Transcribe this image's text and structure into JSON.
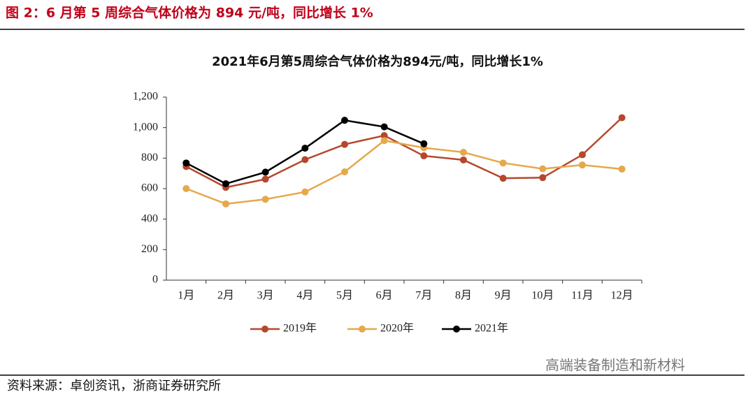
{
  "header_title": "图 2：6 月第 5 周综合气体价格为 894 元/吨，同比增长 1%",
  "source": "资料来源：卓创资讯，浙商证券研究所",
  "watermark": "高端装备制造和新材料",
  "chart_data": {
    "type": "line",
    "title": "2021年6月第5周综合气体价格为894元/吨，同比增长1%",
    "categories": [
      "1月",
      "2月",
      "3月",
      "4月",
      "5月",
      "6月",
      "7月",
      "8月",
      "9月",
      "10月",
      "11月",
      "12月"
    ],
    "series": [
      {
        "name": "2019年",
        "color": "#b5482c",
        "values": [
          745,
          608,
          662,
          790,
          890,
          948,
          815,
          788,
          668,
          672,
          822,
          1065
        ]
      },
      {
        "name": "2020年",
        "color": "#e5a84b",
        "values": [
          600,
          500,
          530,
          578,
          710,
          915,
          868,
          838,
          768,
          730,
          755,
          728
        ]
      },
      {
        "name": "2021年",
        "color": "#000000",
        "values": [
          768,
          632,
          708,
          865,
          1048,
          1005,
          894,
          null,
          null,
          null,
          null,
          null
        ]
      }
    ],
    "ylim": [
      0,
      1200
    ],
    "yticks": [
      0,
      200,
      400,
      600,
      800,
      {
        "value": 1000,
        "label": "1,000"
      },
      {
        "value": 1200,
        "label": "1,200"
      }
    ],
    "legend": "bottom"
  }
}
